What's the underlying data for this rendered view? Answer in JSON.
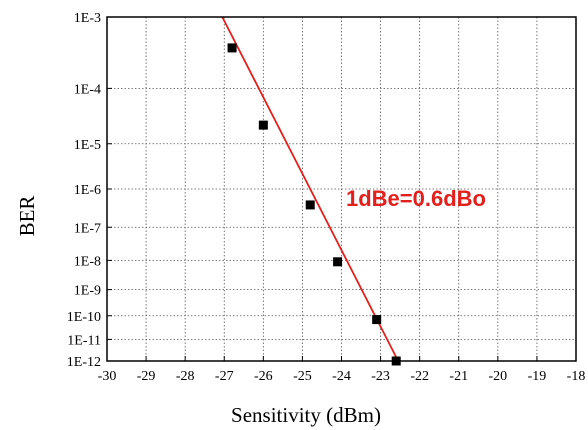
{
  "chart_data": {
    "type": "scatter",
    "title": "",
    "xlabel": "Sensitivity (dBm)",
    "ylabel": "BER",
    "xlim": [
      -30,
      -18
    ],
    "y_scale": "ber-probit",
    "x_ticks": [
      -30,
      -29,
      -28,
      -27,
      -26,
      -25,
      -24,
      -23,
      -22,
      -21,
      -20,
      -19,
      -18
    ],
    "x_tick_labels": [
      "-30",
      "-29",
      "-28",
      "-27",
      "-26",
      "-25",
      "-24",
      "-23",
      "-22",
      "-21",
      "-20",
      "-19",
      "-18"
    ],
    "y_ticks": [
      0.001,
      0.0001,
      1e-05,
      1e-06,
      1e-07,
      1e-08,
      1e-09,
      1e-10,
      1e-11,
      1e-12
    ],
    "y_tick_labels": [
      "1E-3",
      "1E-4",
      "1E-5",
      "1E-6",
      "1E-7",
      "1E-8",
      "1E-9",
      "1E-10",
      "1E-11",
      "1E-12"
    ],
    "grid": true,
    "series": [
      {
        "marker": "square",
        "color": "#000000",
        "points": [
          {
            "x": -26.8,
            "y": 0.0004
          },
          {
            "x": -26.0,
            "y": 2.3e-05
          },
          {
            "x": -24.8,
            "y": 4e-07
          },
          {
            "x": -24.1,
            "y": 9e-09
          },
          {
            "x": -23.1,
            "y": 7e-11
          },
          {
            "x": -22.6,
            "y": 1e-12
          }
        ]
      }
    ],
    "fit_line": {
      "color": "#e3201c",
      "points": [
        {
          "x": -27.05,
          "y": 0.001
        },
        {
          "x": -22.55,
          "y": 1e-12
        }
      ]
    },
    "annotations": [
      {
        "text": "1dBe=0.6dBo",
        "color": "#e3201c"
      }
    ]
  }
}
